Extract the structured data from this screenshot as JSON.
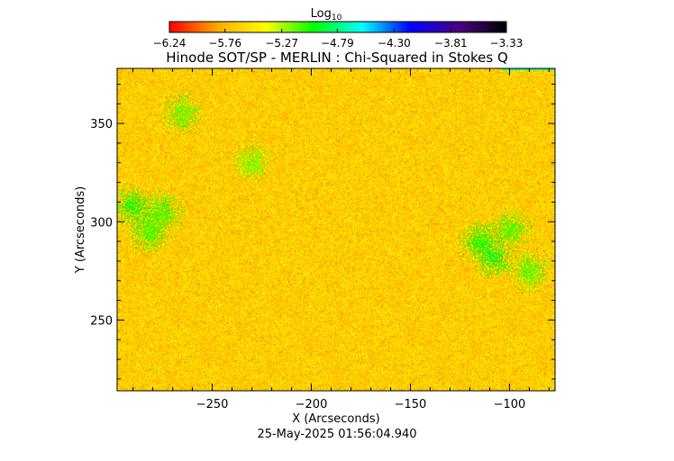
{
  "chart_data": {
    "type": "heatmap",
    "title": "Hinode SOT/SP - MERLIN : Chi-Squared in Stokes Q",
    "xlabel": "X (Arcseconds)",
    "ylabel": "Y (Arcseconds)",
    "timestamp": "25-May-2025 01:56:04.940",
    "xlim": [
      -298,
      -77
    ],
    "ylim": [
      214,
      378
    ],
    "x_ticks": [
      -250,
      -200,
      -150,
      -100
    ],
    "x_tick_labels": [
      "−250",
      "−200",
      "−150",
      "−100"
    ],
    "y_ticks": [
      250,
      300,
      350
    ],
    "y_tick_labels": [
      "250",
      "300",
      "350"
    ],
    "colorbar": {
      "label": "Log",
      "label_subscript": "10",
      "range": [
        -6.24,
        -3.33
      ],
      "ticks": [
        -6.24,
        -5.76,
        -5.27,
        -4.79,
        -4.3,
        -3.81,
        -3.33
      ],
      "tick_labels": [
        "−6.24",
        "−5.76",
        "−5.27",
        "−4.79",
        "−4.30",
        "−3.81",
        "−3.33"
      ],
      "colors": [
        "#ff0000",
        "#ffaa00",
        "#ffff00",
        "#00ff00",
        "#00ffff",
        "#0000ff",
        "#4b0082",
        "#000000"
      ]
    },
    "typical_value_range": [
      -6.0,
      -5.2
    ],
    "green_patches": [
      {
        "x": -290,
        "y": 308,
        "value": -4.9
      },
      {
        "x": -282,
        "y": 295,
        "value": -5.0
      },
      {
        "x": -275,
        "y": 305,
        "value": -5.0
      },
      {
        "x": -265,
        "y": 355,
        "value": -5.05
      },
      {
        "x": -230,
        "y": 330,
        "value": -5.1
      },
      {
        "x": -115,
        "y": 290,
        "value": -4.95
      },
      {
        "x": -108,
        "y": 282,
        "value": -4.9
      },
      {
        "x": -100,
        "y": 296,
        "value": -5.0
      },
      {
        "x": -90,
        "y": 275,
        "value": -5.05
      }
    ]
  }
}
